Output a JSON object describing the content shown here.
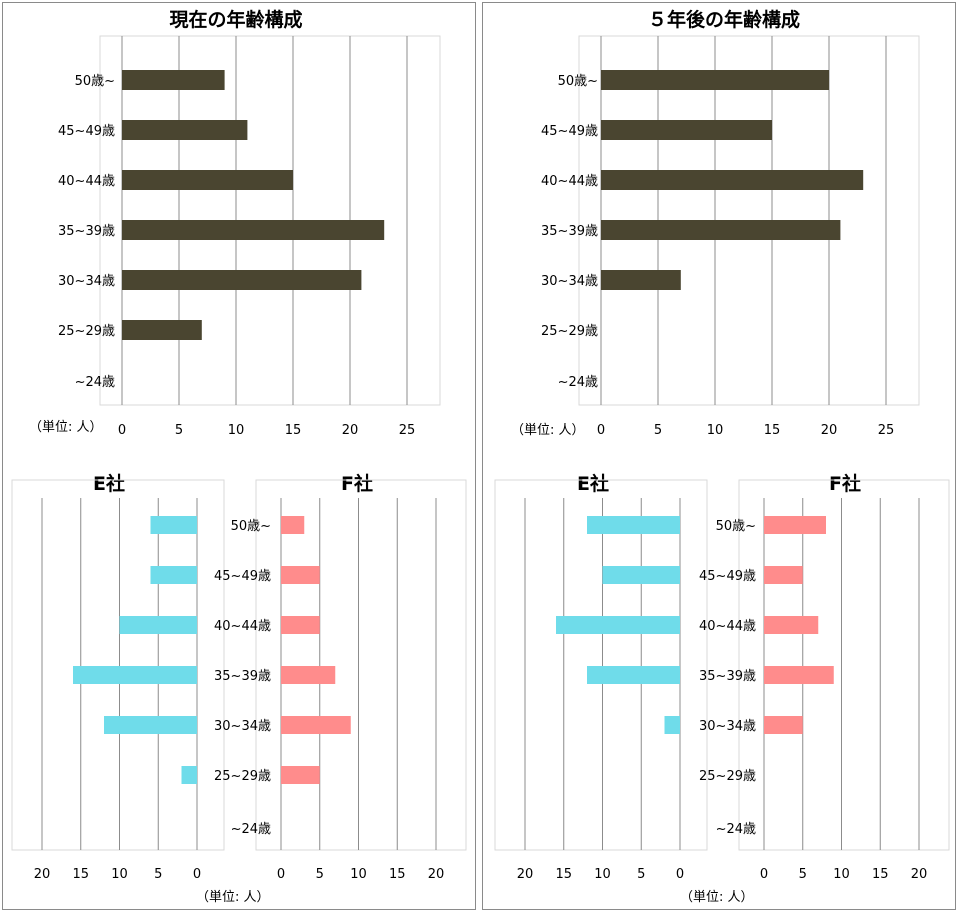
{
  "colors": {
    "main_bar": "#4a4530",
    "e_bar": "#6fdcea",
    "f_bar": "#ff8c8c",
    "grid": "#8c8c8c"
  },
  "unit_label": "（単位: 人）",
  "unit_label_bottom": "（単位: 人）",
  "chart_data": [
    {
      "type": "bar",
      "orientation": "horizontal",
      "panel": "left",
      "title": "現在の年齢構成",
      "categories": [
        "50歳~",
        "45~49歳",
        "40~44歳",
        "35~39歳",
        "30~34歳",
        "25~29歳",
        "~24歳"
      ],
      "values": [
        9,
        11,
        15,
        23,
        21,
        7,
        0
      ],
      "xlim": [
        0,
        25
      ],
      "xticks": [
        "0",
        "5",
        "10",
        "15",
        "20",
        "25"
      ],
      "grid": true
    },
    {
      "type": "bar",
      "orientation": "horizontal",
      "panel": "right",
      "title": "５年後の年齢構成",
      "categories": [
        "50歳~",
        "45~49歳",
        "40~44歳",
        "35~39歳",
        "30~34歳",
        "25~29歳",
        "~24歳"
      ],
      "values": [
        20,
        15,
        23,
        21,
        7,
        0,
        0
      ],
      "xlim": [
        0,
        25
      ],
      "xticks": [
        "0",
        "5",
        "10",
        "15",
        "20",
        "25"
      ],
      "grid": true
    },
    {
      "type": "bar",
      "orientation": "horizontal",
      "direction": "reversed",
      "panel": "left",
      "title": "E社",
      "categories": [
        "50歳~",
        "45~49歳",
        "40~44歳",
        "35~39歳",
        "30~34歳",
        "25~29歳",
        "~24歳"
      ],
      "values": [
        6,
        6,
        10,
        16,
        12,
        2,
        0
      ],
      "xlim": [
        0,
        20
      ],
      "xticks": [
        "20",
        "15",
        "10",
        "5",
        "0"
      ],
      "grid": true
    },
    {
      "type": "bar",
      "orientation": "horizontal",
      "panel": "left",
      "title": "F社",
      "categories": [
        "50歳~",
        "45~49歳",
        "40~44歳",
        "35~39歳",
        "30~34歳",
        "25~29歳",
        "~24歳"
      ],
      "values": [
        3,
        5,
        5,
        7,
        9,
        5,
        0
      ],
      "xlim": [
        0,
        20
      ],
      "xticks": [
        "0",
        "5",
        "10",
        "15",
        "20"
      ],
      "grid": true
    },
    {
      "type": "bar",
      "orientation": "horizontal",
      "direction": "reversed",
      "panel": "right",
      "title": "E社",
      "categories": [
        "50歳~",
        "45~49歳",
        "40~44歳",
        "35~39歳",
        "30~34歳",
        "25~29歳",
        "~24歳"
      ],
      "values": [
        12,
        10,
        16,
        12,
        2,
        0,
        0
      ],
      "xlim": [
        0,
        20
      ],
      "xticks": [
        "20",
        "15",
        "10",
        "5",
        "0"
      ],
      "grid": true
    },
    {
      "type": "bar",
      "orientation": "horizontal",
      "panel": "right",
      "title": "F社",
      "categories": [
        "50歳~",
        "45~49歳",
        "40~44歳",
        "35~39歳",
        "30~34歳",
        "25~29歳",
        "~24歳"
      ],
      "values": [
        8,
        5,
        7,
        9,
        5,
        0,
        0
      ],
      "xlim": [
        0,
        20
      ],
      "xticks": [
        "0",
        "5",
        "10",
        "15",
        "20"
      ],
      "grid": true
    }
  ]
}
